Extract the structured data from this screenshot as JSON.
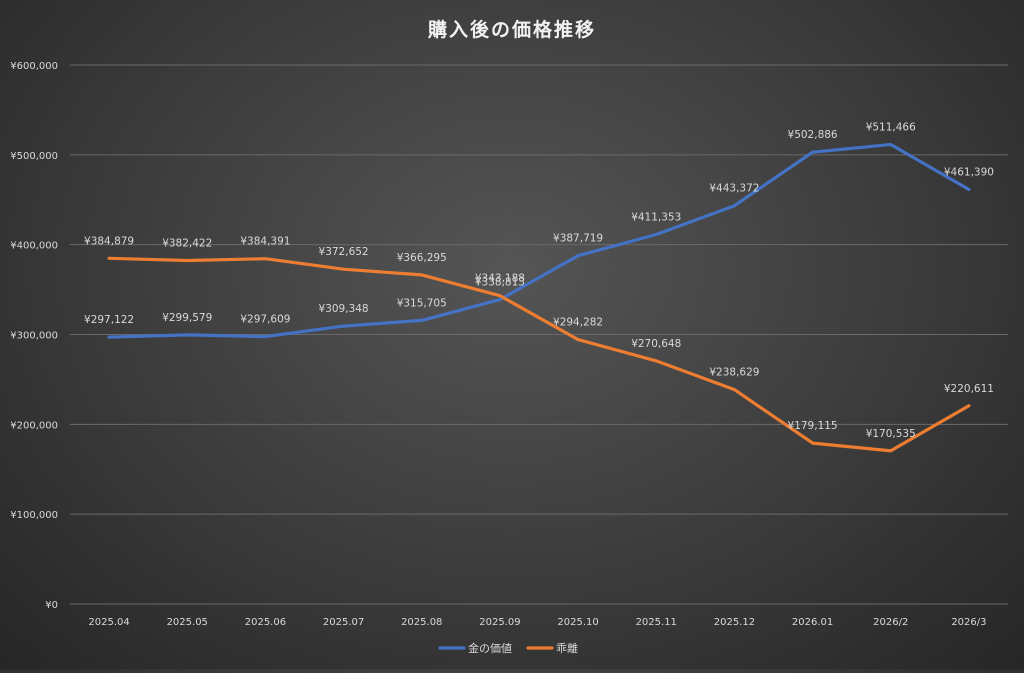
{
  "chart_data": {
    "type": "line",
    "title": "購入後の価格推移",
    "categories": [
      "2025.04",
      "2025.05",
      "2025.06",
      "2025.07",
      "2025.08",
      "2025.09",
      "2025.10",
      "2025.11",
      "2025.12",
      "2026.01",
      "2026/2",
      "2026/3"
    ],
    "ylim": [
      0,
      600000
    ],
    "y_ticks": [
      0,
      100000,
      200000,
      300000,
      400000,
      500000,
      600000
    ],
    "y_tick_labels": [
      "¥0",
      "¥100,000",
      "¥200,000",
      "¥300,000",
      "¥400,000",
      "¥500,000",
      "¥600,000"
    ],
    "grid": true,
    "legend_position": "bottom",
    "series": [
      {
        "name": "金の価値",
        "color": "#4472C4",
        "values": [
          297122,
          299579,
          297609,
          309348,
          315705,
          338813,
          387719,
          411353,
          443372,
          502886,
          511466,
          461390
        ],
        "labels": [
          "¥297,122",
          "¥299,579",
          "¥297,609",
          "¥309,348",
          "¥315,705",
          "¥338,813",
          "¥387,719",
          "¥411,353",
          "¥443,372",
          "¥502,886",
          "¥511,466",
          "¥461,390"
        ]
      },
      {
        "name": "乖離",
        "color": "#ED7D31",
        "values": [
          384879,
          382422,
          384391,
          372652,
          366295,
          343188,
          294282,
          270648,
          238629,
          179115,
          170535,
          220611
        ],
        "labels": [
          "¥384,879",
          "¥382,422",
          "¥384,391",
          "¥372,652",
          "¥366,295",
          "¥343,188",
          "¥294,282",
          "¥270,648",
          "¥238,629",
          "¥179,115",
          "¥170,535",
          "¥220,611"
        ]
      }
    ]
  }
}
